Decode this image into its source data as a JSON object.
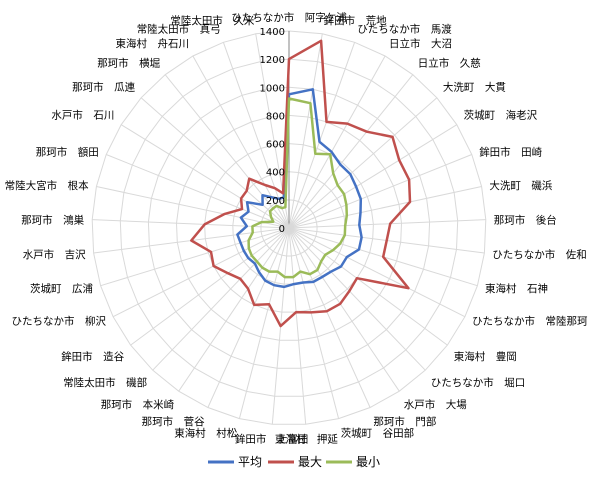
{
  "chart_data": {
    "type": "radar",
    "categories": [
      "ひたちなか市　阿字ケ浦",
      "鉾田市　荒地",
      "ひたちなか市　馬渡",
      "日立市　大沼",
      "日立市　久慈",
      "大洗町　大貫",
      "茨城町　海老沢",
      "鉾田市　田崎",
      "大洗町　磯浜",
      "那珂市　後台",
      "ひたちなか市　佐和",
      "東海村　石神",
      "ひたちなか市　常陸那珂",
      "東海村　豊岡",
      "ひたちなか市　堀口",
      "水戸市　大場",
      "那珂市　門部",
      "茨城町　谷田部",
      "東海村　押延",
      "鉾田市　上富田",
      "東海村　村松",
      "那珂市　菅谷",
      "那珂市　本米崎",
      "常陸太田市　磯部",
      "鉾田市　造谷",
      "ひたちなか市　柳沢",
      "茨城町　広浦",
      "水戸市　吉沢",
      "那珂市　鴻巣",
      "常陸大宮市　根本",
      "那珂市　額田",
      "水戸市　石川",
      "那珂市　瓜連",
      "那珂市　横堀",
      "東海村　舟石川",
      "常陸太田市　真弓",
      "常陸太田市　久米"
    ],
    "series": [
      {
        "name": "平均",
        "color": "#4472c4",
        "values": [
          950,
          1000,
          650,
          620,
          580,
          580,
          560,
          550,
          520,
          500,
          520,
          520,
          460,
          460,
          430,
          420,
          420,
          400,
          400,
          420,
          420,
          410,
          380,
          350,
          360,
          360,
          360,
          370,
          300,
          350,
          310,
          350,
          250,
          300,
          250,
          220,
          220
        ]
      },
      {
        "name": "最大",
        "color": "#c0504d",
        "values": [
          1200,
          1350,
          800,
          850,
          880,
          980,
          920,
          920,
          880,
          720,
          700,
          700,
          950,
          600,
          620,
          650,
          650,
          620,
          600,
          700,
          560,
          600,
          520,
          500,
          540,
          600,
          580,
          700,
          600,
          470,
          360,
          400,
          400,
          450,
          350,
          300,
          250
        ]
      },
      {
        "name": "最小",
        "color": "#9bbb59",
        "values": [
          920,
          900,
          560,
          600,
          500,
          460,
          460,
          440,
          420,
          400,
          400,
          380,
          350,
          320,
          330,
          360,
          360,
          320,
          350,
          350,
          320,
          340,
          340,
          330,
          330,
          320,
          300,
          260,
          260,
          200,
          120,
          150,
          180,
          180,
          180,
          150,
          150
        ]
      }
    ],
    "rlim": [
      0,
      1400
    ],
    "ticks": [
      0,
      200,
      400,
      600,
      800,
      1000,
      1200,
      1400
    ],
    "grid": true,
    "legend_position": "bottom"
  }
}
